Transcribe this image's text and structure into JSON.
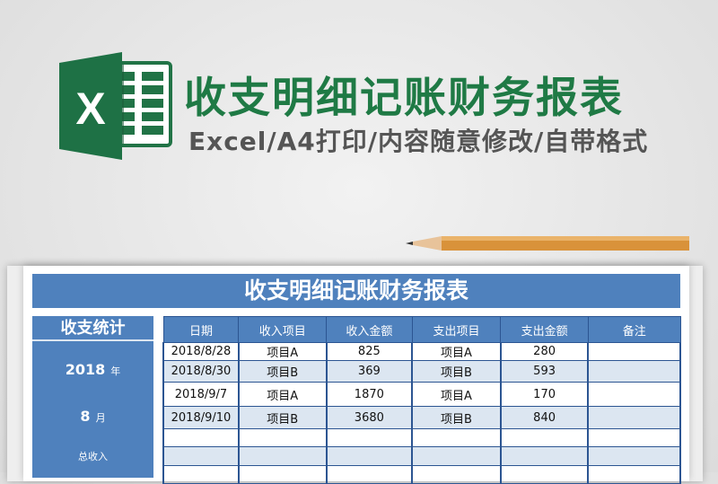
{
  "header": {
    "title": "收支明细记账财务报表",
    "subtitle": "Excel/A4打印/内容随意修改/自带格式",
    "logo_letter": "X"
  },
  "sheet": {
    "title": "收支明细记账财务报表",
    "left_panel": {
      "heading": "收支统计",
      "year": "2018",
      "year_unit": "年",
      "month": "8",
      "month_unit": "月",
      "total_income_label": "总收入"
    },
    "columns": [
      "日期",
      "收入项目",
      "收入金额",
      "支出项目",
      "支出金额",
      "备注"
    ],
    "rows": [
      [
        "2018/8/28",
        "项目A",
        "825",
        "项目A",
        "280",
        ""
      ],
      [
        "2018/8/30",
        "项目B",
        "369",
        "项目B",
        "593",
        ""
      ],
      [
        "2018/9/7",
        "项目A",
        "1870",
        "项目A",
        "170",
        ""
      ],
      [
        "2018/9/10",
        "项目B",
        "3680",
        "项目B",
        "840",
        ""
      ],
      [
        "",
        "",
        "",
        "",
        "",
        ""
      ],
      [
        "",
        "",
        "",
        "",
        "",
        ""
      ],
      [
        "",
        "",
        "",
        "",
        "",
        ""
      ]
    ]
  },
  "colors": {
    "accent": "#4f81bd",
    "alt_row": "#dce6f1",
    "brand_green": "#1f7a45"
  }
}
